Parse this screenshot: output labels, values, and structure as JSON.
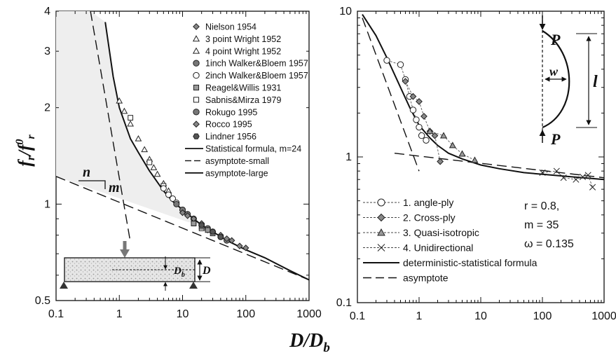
{
  "xlabel": "D/D",
  "xlabel_sub": "b",
  "ylabel": "f",
  "ylabel_sub": "r",
  "ylabel_mid": "/f",
  "ylabel_sup": "0",
  "ylabel_sub2": "r",
  "chart_data": [
    {
      "type": "scatter",
      "xscale": "log",
      "yscale": "log",
      "xlim": [
        0.1,
        1000
      ],
      "ylim": [
        0.5,
        4
      ],
      "x_ticks": [
        "0.1",
        "1",
        "10",
        "100",
        "1000"
      ],
      "y_ticks": [
        "0.5",
        "1",
        "2",
        "3",
        "4"
      ],
      "legend_position": "top-right",
      "legend": [
        {
          "label": "Nielson 1954",
          "marker": "diamond-filled"
        },
        {
          "label": "3 point Wright 1952",
          "marker": "triangle-open"
        },
        {
          "label": "4 point Wright 1952",
          "marker": "triangle-open"
        },
        {
          "label": "1inch Walker&Bloem 1957",
          "marker": "circle-filled"
        },
        {
          "label": "2inch Walker&Bloem 1957",
          "marker": "circle-open"
        },
        {
          "label": "Reagel&Willis 1931",
          "marker": "square-filled"
        },
        {
          "label": "Sabnis&Mirza 1979",
          "marker": "square-open"
        },
        {
          "label": "Rokugo 1995",
          "marker": "circle-filled"
        },
        {
          "label": "Rocco 1995",
          "marker": "diamond-filled"
        },
        {
          "label": "Lindner 1956",
          "marker": "hexagon-filled"
        },
        {
          "label": "Statistical formula, m=24",
          "marker": "line-solid"
        },
        {
          "label": "asymptote-small",
          "marker": "line-dashed"
        },
        {
          "label": "asymptote-large",
          "marker": "line-solid"
        }
      ],
      "lines": [
        {
          "name": "Statistical formula",
          "style": "solid",
          "x": [
            0.6,
            0.8,
            1,
            1.5,
            2,
            3,
            5,
            7,
            10,
            15,
            20,
            30,
            50,
            100,
            200,
            500,
            1000
          ],
          "y": [
            3.7,
            2.5,
            2.0,
            1.6,
            1.45,
            1.27,
            1.1,
            1.02,
            0.96,
            0.9,
            0.86,
            0.82,
            0.77,
            0.72,
            0.68,
            0.62,
            0.58
          ]
        },
        {
          "name": "asymptote-small",
          "style": "dashed",
          "x": [
            0.35,
            1.5
          ],
          "y": [
            4.0,
            0.76
          ]
        },
        {
          "name": "asymptote-large",
          "style": "dashed",
          "x": [
            0.1,
            1000
          ],
          "y": [
            1.22,
            0.58
          ]
        }
      ],
      "points": [
        {
          "marker": "triangle-open",
          "x": [
            1,
            1.2,
            1.5,
            2,
            2.5,
            3,
            3.5,
            4,
            5,
            6
          ],
          "y": [
            2.1,
            1.95,
            1.78,
            1.6,
            1.48,
            1.38,
            1.3,
            1.24,
            1.16,
            1.1
          ]
        },
        {
          "marker": "square-open",
          "x": [
            1.5,
            3,
            5,
            15,
            20
          ],
          "y": [
            1.86,
            1.35,
            1.14,
            0.87,
            0.84
          ]
        },
        {
          "marker": "circle-open",
          "x": [
            5,
            6,
            7,
            8,
            10,
            12
          ],
          "y": [
            1.12,
            1.07,
            1.04,
            1.01,
            0.96,
            0.93
          ]
        },
        {
          "marker": "circle-filled",
          "x": [
            8,
            10,
            12,
            15,
            20,
            25,
            30,
            40,
            50
          ],
          "y": [
            1.0,
            0.96,
            0.93,
            0.9,
            0.86,
            0.84,
            0.82,
            0.79,
            0.77
          ]
        },
        {
          "marker": "diamond-filled",
          "x": [
            10,
            12,
            15,
            20,
            25,
            30,
            40,
            50,
            60,
            80,
            100
          ],
          "y": [
            0.94,
            0.92,
            0.9,
            0.87,
            0.83,
            0.82,
            0.8,
            0.78,
            0.77,
            0.74,
            0.73
          ]
        },
        {
          "marker": "square-filled",
          "x": [
            15,
            20,
            25,
            30
          ],
          "y": [
            0.87,
            0.85,
            0.83,
            0.81
          ]
        },
        {
          "marker": "hexagon-filled",
          "x": [
            20,
            30,
            40
          ],
          "y": [
            0.86,
            0.82,
            0.79
          ]
        }
      ],
      "annotations": [
        "n",
        "m",
        "D",
        "D",
        "b"
      ],
      "shaded_region": "between asymptote-small and statistical formula"
    },
    {
      "type": "line",
      "xscale": "log",
      "yscale": "log",
      "xlim": [
        0.1,
        1000
      ],
      "ylim": [
        0.1,
        10
      ],
      "x_ticks": [
        "0.1",
        "1",
        "10",
        "100",
        "1000"
      ],
      "y_ticks": [
        "0.1",
        "1",
        "10"
      ],
      "legend_position": "bottom-left",
      "legend": [
        {
          "label": "1. angle-ply",
          "marker": "circle-open",
          "style": "dashed"
        },
        {
          "label": "2. Cross-ply",
          "marker": "diamond-filled",
          "style": "dashed"
        },
        {
          "label": "3. Quasi-isotropic",
          "marker": "triangle-filled",
          "style": "dashed"
        },
        {
          "label": "4. Unidirectional",
          "marker": "x",
          "style": "dashed"
        },
        {
          "label": "deterministic-statistical formula",
          "marker": "line-solid"
        },
        {
          "label": "asymptote",
          "marker": "line-dashed"
        }
      ],
      "series": [
        {
          "name": "1. angle-ply",
          "marker": "circle-open",
          "x": [
            0.3,
            0.5,
            0.6,
            0.7,
            0.8,
            0.9,
            1.0,
            1.1,
            1.3
          ],
          "y": [
            4.6,
            4.3,
            3.4,
            2.6,
            2.1,
            1.8,
            1.6,
            1.4,
            1.3
          ]
        },
        {
          "name": "2. Cross-ply",
          "marker": "diamond-filled",
          "x": [
            0.6,
            0.8,
            1.0,
            1.2,
            1.5,
            1.8,
            2.2
          ],
          "y": [
            3.3,
            2.6,
            2.4,
            1.9,
            1.5,
            1.4,
            0.93
          ]
        },
        {
          "name": "3. Quasi-isotropic",
          "marker": "triangle-filled",
          "x": [
            1.5,
            2.5,
            3.5,
            5,
            8
          ],
          "y": [
            1.5,
            1.4,
            1.2,
            1.05,
            0.95
          ]
        },
        {
          "name": "4. Unidirectional",
          "marker": "x",
          "x": [
            100,
            170,
            220,
            350,
            450,
            550,
            650
          ],
          "y": [
            0.78,
            0.8,
            0.72,
            0.7,
            0.73,
            0.75,
            0.62
          ]
        }
      ],
      "lines": [
        {
          "name": "deterministic-statistical formula",
          "style": "solid",
          "x": [
            0.12,
            0.2,
            0.3,
            0.5,
            0.7,
            1,
            1.5,
            2,
            3,
            5,
            10,
            20,
            50,
            100,
            300,
            1000
          ],
          "y": [
            9.5,
            6.8,
            4.8,
            3.0,
            2.2,
            1.65,
            1.35,
            1.2,
            1.06,
            0.97,
            0.88,
            0.83,
            0.78,
            0.76,
            0.73,
            0.7
          ]
        },
        {
          "name": "asymptote-steep",
          "style": "dashed",
          "x": [
            0.12,
            1.0
          ],
          "y": [
            9.0,
            0.8
          ]
        },
        {
          "name": "asymptote-flat",
          "style": "dashed",
          "x": [
            0.4,
            1000
          ],
          "y": [
            1.06,
            0.72
          ]
        }
      ],
      "annotations": {
        "r": "r = 0.8,",
        "m": "m = 35",
        "omega": "ω = 0.135",
        "inset": [
          "P",
          "w",
          "l",
          "P"
        ]
      }
    }
  ]
}
